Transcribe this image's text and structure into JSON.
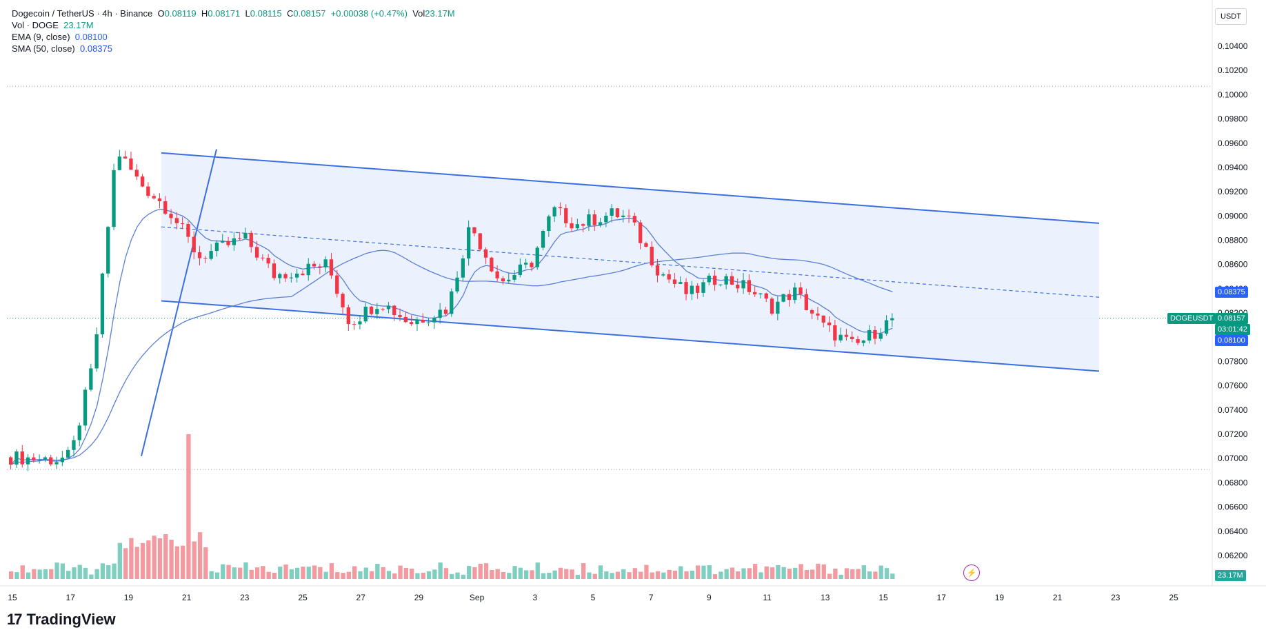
{
  "legend": {
    "symbol": "Dogecoin / TetherUS · 4h · Binance",
    "open_label": "O",
    "open": "0.08119",
    "high_label": "H",
    "high": "0.08171",
    "low_label": "L",
    "low": "0.08115",
    "close_label": "C",
    "close": "0.08157",
    "change": "+0.00038 (+0.47%)",
    "vol_label": "Vol",
    "vol": "23.17M",
    "volume_title": "Vol · DOGE",
    "volume_value": "23.17M",
    "ema_title": "EMA (9, close)",
    "ema_value": "0.08100",
    "sma_title": "SMA (50, close)",
    "sma_value": "0.08375"
  },
  "currency_button": "USDT",
  "tags": {
    "symbol": "DOGEUSDT",
    "price": "0.08157",
    "countdown": "03:01:42",
    "ema": "0.08100",
    "sma": "0.08375",
    "volume": "23.17M"
  },
  "branding": {
    "name": "TradingView",
    "mark": "17"
  },
  "colors": {
    "up": "#089981",
    "down": "#f23645",
    "up_vol": "#7fcfc1",
    "down_vol": "#f29a9f",
    "channel_line": "#3b6fe0",
    "channel_fill": "#e7effd",
    "ma_line": "#5b7fd6"
  },
  "chart_data": {
    "type": "candlestick",
    "symbol": "DOGEUSDT",
    "timeframe": "4h",
    "y_axis": {
      "ticks": [
        "0.10400",
        "0.10200",
        "0.10000",
        "0.09800",
        "0.09600",
        "0.09400",
        "0.09200",
        "0.09000",
        "0.08800",
        "0.08600",
        "0.08400",
        "0.08200",
        "0.08000",
        "0.07800",
        "0.07600",
        "0.07400",
        "0.07200",
        "0.07000",
        "0.06800",
        "0.06600",
        "0.06400",
        "0.06200"
      ],
      "range": [
        0.0607,
        0.1054
      ]
    },
    "x_axis": {
      "ticks": [
        "15",
        "17",
        "19",
        "21",
        "23",
        "25",
        "27",
        "29",
        "Sep",
        "3",
        "5",
        "7",
        "9",
        "11",
        "13",
        "15",
        "17",
        "19",
        "21",
        "23",
        "25"
      ]
    },
    "key_prices": [
      {
        "point": 0,
        "price": 0.0701
      },
      {
        "point": 6,
        "price": 0.0699
      },
      {
        "point": 8,
        "price": 0.0702
      },
      {
        "point": 11,
        "price": 0.078
      },
      {
        "point": 14,
        "price": 0.0955
      },
      {
        "point": 17,
        "price": 0.0928
      },
      {
        "point": 21,
        "price": 0.0905
      },
      {
        "point": 25,
        "price": 0.0866
      },
      {
        "point": 31,
        "price": 0.0882
      },
      {
        "point": 35,
        "price": 0.0851
      },
      {
        "point": 42,
        "price": 0.086
      },
      {
        "point": 45,
        "price": 0.0812
      },
      {
        "point": 49,
        "price": 0.083
      },
      {
        "point": 53,
        "price": 0.0812
      },
      {
        "point": 58,
        "price": 0.0824
      },
      {
        "point": 61,
        "price": 0.0893
      },
      {
        "point": 65,
        "price": 0.0845
      },
      {
        "point": 69,
        "price": 0.086
      },
      {
        "point": 72,
        "price": 0.0905
      },
      {
        "point": 75,
        "price": 0.0893
      },
      {
        "point": 80,
        "price": 0.0902
      },
      {
        "point": 82,
        "price": 0.0898
      },
      {
        "point": 86,
        "price": 0.0855
      },
      {
        "point": 90,
        "price": 0.0835
      },
      {
        "point": 94,
        "price": 0.085
      },
      {
        "point": 98,
        "price": 0.084
      },
      {
        "point": 101,
        "price": 0.0825
      },
      {
        "point": 104,
        "price": 0.0838
      },
      {
        "point": 108,
        "price": 0.0808
      },
      {
        "point": 112,
        "price": 0.0792
      },
      {
        "point": 117,
        "price": 0.0815
      }
    ],
    "candle_count": 155,
    "overlays": [
      {
        "name": "EMA (9, close)",
        "last": 0.081
      },
      {
        "name": "SMA (50, close)",
        "last": 0.08375
      }
    ],
    "channel": {
      "upper_start": 0.0952,
      "upper_end": 0.0894,
      "lower_start": 0.083,
      "lower_end": 0.0772,
      "mid_start": 0.0891,
      "mid_end": 0.0833
    },
    "horizontal_lines": [
      0.1007,
      0.0691
    ],
    "current_price": 0.08157,
    "volume_last": "23.17M"
  }
}
